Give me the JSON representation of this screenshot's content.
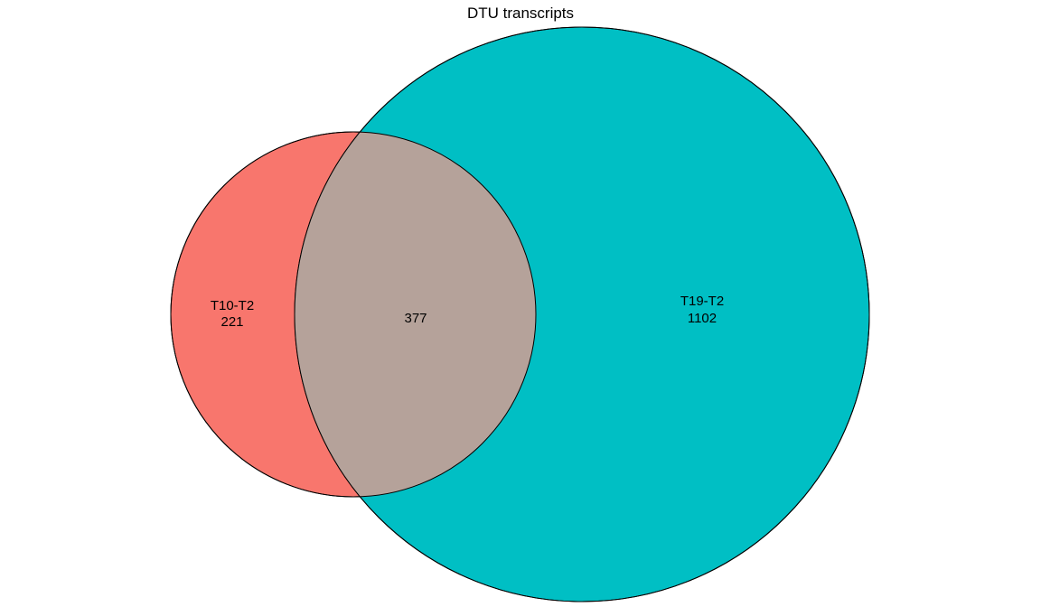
{
  "chart_data": {
    "type": "venn",
    "title": "DTU transcripts",
    "sets": [
      {
        "name": "T10-T2",
        "only_count": "221",
        "color": "#F8766D"
      },
      {
        "name": "T19-T2",
        "only_count": "1102",
        "color": "#00BFC4"
      }
    ],
    "intersection": {
      "count": "377",
      "color": "#B5A29A"
    },
    "stroke_color": "#000000"
  }
}
